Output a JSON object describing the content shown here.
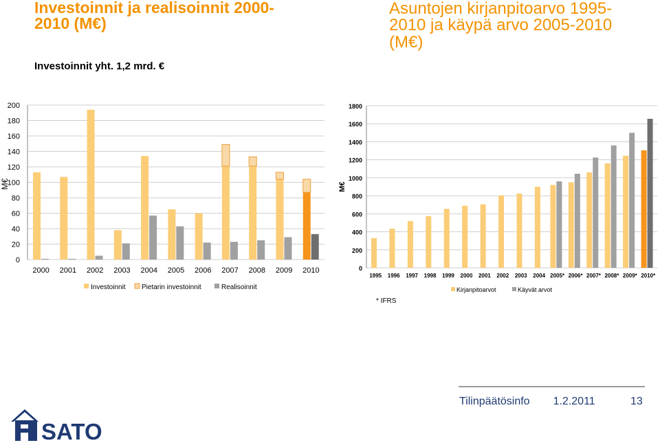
{
  "left_title": "Investoinnit ja realisoinnit 2000-2010 (M€)",
  "left_subtitle": "Investoinnit yht. 1,2 mrd. €",
  "right_title": "Asuntojen kirjanpitoarvo 1995-2010 ja käypä arvo 2005-2010 (M€)",
  "footer": {
    "label": "Tilinpäätösinfo",
    "date": "1.2.2011",
    "page": "13"
  },
  "logo_text": "SATO",
  "colors": {
    "title": "#f39200",
    "light_orange": "#fbcd77",
    "highlight_orange": "#f7941d",
    "gray": "#a0a0a0",
    "dark_gray": "#6e6e6e",
    "pale": "#fad9a8",
    "footer": "#1f3a73"
  },
  "chart_data": [
    {
      "type": "bar",
      "title": "Investoinnit ja realisoinnit 2000-2010 (M€)",
      "ylabel": "M€",
      "ylim": [
        0,
        200
      ],
      "yticks": [
        "0",
        "20",
        "40",
        "60",
        "80",
        "100",
        "120",
        "140",
        "160",
        "180",
        "200"
      ],
      "categories": [
        "2000",
        "2001",
        "2002",
        "2003",
        "2004",
        "2005",
        "2006",
        "2007",
        "2008",
        "2009",
        "2010"
      ],
      "series": [
        {
          "name": "Investoinnit",
          "values": [
            113,
            107,
            194,
            38,
            134,
            65,
            60,
            121,
            121,
            104,
            87
          ]
        },
        {
          "name": "Pietarin investoinnit",
          "values": [
            0,
            0,
            0,
            0,
            0,
            0,
            0,
            28,
            12,
            9,
            17
          ]
        },
        {
          "name": "Realisoinnit",
          "values": [
            1,
            1,
            5,
            21,
            57,
            43,
            22,
            23,
            25,
            29,
            33
          ]
        }
      ],
      "grid": true,
      "legend": "bottom"
    },
    {
      "type": "bar",
      "title": "Asuntojen kirjanpitoarvo 1995-2010 ja käypä arvo 2005-2010 (M€)",
      "ylabel": "M€",
      "ylim": [
        0,
        1800
      ],
      "yticks": [
        "0",
        "200",
        "400",
        "600",
        "800",
        "1000",
        "1200",
        "1400",
        "1600",
        "1800"
      ],
      "categories": [
        "1995",
        "1996",
        "1997",
        "1998",
        "1999",
        "2000",
        "2001",
        "2002",
        "2003",
        "2004",
        "2005*",
        "2006*",
        "2007*",
        "2008*",
        "2009*",
        "2010*"
      ],
      "series": [
        {
          "name": "Kirjanpitoarvot",
          "values": [
            330,
            435,
            520,
            575,
            655,
            690,
            705,
            805,
            825,
            900,
            920,
            950,
            1060,
            1160,
            1245,
            1305
          ]
        },
        {
          "name": "Käyvät arvot",
          "values": [
            null,
            null,
            null,
            null,
            null,
            null,
            null,
            null,
            null,
            null,
            960,
            1045,
            1225,
            1360,
            1500,
            1655
          ]
        }
      ],
      "footnote": "* IFRS",
      "grid": true,
      "legend": "bottom"
    }
  ]
}
